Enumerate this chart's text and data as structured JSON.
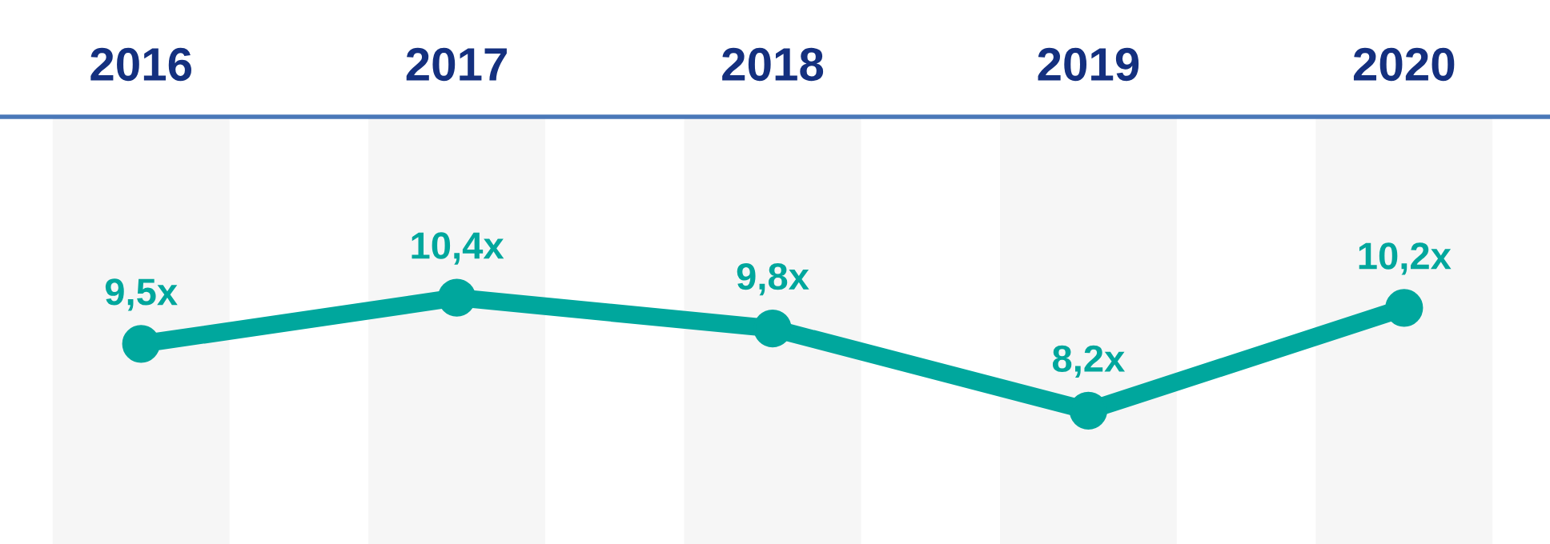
{
  "chart_data": {
    "type": "line",
    "categories": [
      "2016",
      "2017",
      "2018",
      "2019",
      "2020"
    ],
    "series": [
      {
        "color": "#00a79d",
        "values": [
          9.5,
          10.4,
          9.8,
          8.2,
          10.2
        ],
        "value_labels": [
          "9,5x",
          "10,4x",
          "9,8x",
          "8,2x",
          "10,2x"
        ]
      }
    ],
    "marker": "circle",
    "line_style": "solid",
    "grid": false,
    "legend": false
  }
}
